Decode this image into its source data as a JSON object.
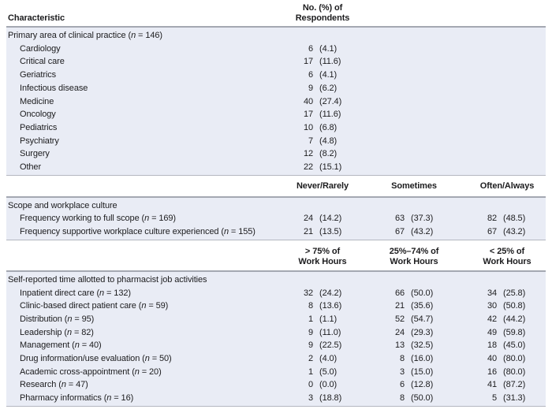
{
  "table": {
    "top_header": {
      "characteristic": "Characteristic",
      "respondents_line1": "No. (%) of",
      "respondents_line2": "Respondents"
    },
    "colors": {
      "band_background": "#e9ecf5",
      "rule_heavy": "#a4a8b2",
      "rule_light": "#b4b7c0",
      "text": "#1c1c1e",
      "page_background": "#ffffff"
    },
    "sections": [
      {
        "id": "clinical-practice",
        "column_headers": null,
        "title": {
          "text": "Primary area of clinical practice",
          "n": "146"
        },
        "rows": [
          {
            "label": "Cardiology",
            "n": null,
            "values": [
              {
                "count": "6",
                "pct": "(4.1)"
              }
            ]
          },
          {
            "label": "Critical care",
            "n": null,
            "values": [
              {
                "count": "17",
                "pct": "(11.6)"
              }
            ]
          },
          {
            "label": "Geriatrics",
            "n": null,
            "values": [
              {
                "count": "6",
                "pct": "(4.1)"
              }
            ]
          },
          {
            "label": "Infectious disease",
            "n": null,
            "values": [
              {
                "count": "9",
                "pct": "(6.2)"
              }
            ]
          },
          {
            "label": "Medicine",
            "n": null,
            "values": [
              {
                "count": "40",
                "pct": "(27.4)"
              }
            ]
          },
          {
            "label": "Oncology",
            "n": null,
            "values": [
              {
                "count": "17",
                "pct": "(11.6)"
              }
            ]
          },
          {
            "label": "Pediatrics",
            "n": null,
            "values": [
              {
                "count": "10",
                "pct": "(6.8)"
              }
            ]
          },
          {
            "label": "Psychiatry",
            "n": null,
            "values": [
              {
                "count": "7",
                "pct": "(4.8)"
              }
            ]
          },
          {
            "label": "Surgery",
            "n": null,
            "values": [
              {
                "count": "12",
                "pct": "(8.2)"
              }
            ]
          },
          {
            "label": "Other",
            "n": null,
            "values": [
              {
                "count": "22",
                "pct": "(15.1)"
              }
            ]
          }
        ]
      },
      {
        "id": "scope-culture",
        "column_headers": [
          {
            "lines": [
              "Never/Rarely"
            ]
          },
          {
            "lines": [
              "Sometimes"
            ]
          },
          {
            "lines": [
              "Often/Always"
            ]
          }
        ],
        "title": {
          "text": "Scope and workplace culture",
          "n": null
        },
        "rows": [
          {
            "label": "Frequency working to full scope",
            "n": "169",
            "values": [
              {
                "count": "24",
                "pct": "(14.2)"
              },
              {
                "count": "63",
                "pct": "(37.3)"
              },
              {
                "count": "82",
                "pct": "(48.5)"
              }
            ]
          },
          {
            "label": "Frequency supportive workplace culture experienced",
            "n": "155",
            "values": [
              {
                "count": "21",
                "pct": "(13.5)"
              },
              {
                "count": "67",
                "pct": "(43.2)"
              },
              {
                "count": "67",
                "pct": "(43.2)"
              }
            ]
          }
        ]
      },
      {
        "id": "time-allotted",
        "column_headers": [
          {
            "lines": [
              "> 75% of",
              "Work Hours"
            ]
          },
          {
            "lines": [
              "25%–74% of",
              "Work Hours"
            ]
          },
          {
            "lines": [
              "< 25% of",
              "Work Hours"
            ]
          }
        ],
        "title": {
          "text": "Self-reported time allotted to pharmacist job activities",
          "n": null
        },
        "rows": [
          {
            "label": "Inpatient direct care",
            "n": "132",
            "values": [
              {
                "count": "32",
                "pct": "(24.2)"
              },
              {
                "count": "66",
                "pct": "(50.0)"
              },
              {
                "count": "34",
                "pct": "(25.8)"
              }
            ]
          },
          {
            "label": "Clinic-based direct patient care",
            "n": "59",
            "values": [
              {
                "count": "8",
                "pct": "(13.6)"
              },
              {
                "count": "21",
                "pct": "(35.6)"
              },
              {
                "count": "30",
                "pct": "(50.8)"
              }
            ]
          },
          {
            "label": "Distribution",
            "n": "95",
            "values": [
              {
                "count": "1",
                "pct": "(1.1)"
              },
              {
                "count": "52",
                "pct": "(54.7)"
              },
              {
                "count": "42",
                "pct": "(44.2)"
              }
            ]
          },
          {
            "label": "Leadership",
            "n": "82",
            "values": [
              {
                "count": "9",
                "pct": "(11.0)"
              },
              {
                "count": "24",
                "pct": "(29.3)"
              },
              {
                "count": "49",
                "pct": "(59.8)"
              }
            ]
          },
          {
            "label": "Management",
            "n": "40",
            "values": [
              {
                "count": "9",
                "pct": "(22.5)"
              },
              {
                "count": "13",
                "pct": "(32.5)"
              },
              {
                "count": "18",
                "pct": "(45.0)"
              }
            ]
          },
          {
            "label": "Drug information/use evaluation",
            "n": "50",
            "values": [
              {
                "count": "2",
                "pct": "(4.0)"
              },
              {
                "count": "8",
                "pct": "(16.0)"
              },
              {
                "count": "40",
                "pct": "(80.0)"
              }
            ]
          },
          {
            "label": "Academic cross-appointment",
            "n": "20",
            "values": [
              {
                "count": "1",
                "pct": "(5.0)"
              },
              {
                "count": "3",
                "pct": "(15.0)"
              },
              {
                "count": "16",
                "pct": "(80.0)"
              }
            ]
          },
          {
            "label": "Research",
            "n": "47",
            "values": [
              {
                "count": "0",
                "pct": "(0.0)"
              },
              {
                "count": "6",
                "pct": "(12.8)"
              },
              {
                "count": "41",
                "pct": "(87.2)"
              }
            ]
          },
          {
            "label": "Pharmacy informatics",
            "n": "16",
            "values": [
              {
                "count": "3",
                "pct": "(18.8)"
              },
              {
                "count": "8",
                "pct": "(50.0)"
              },
              {
                "count": "5",
                "pct": "(31.3)"
              }
            ]
          }
        ]
      }
    ]
  }
}
